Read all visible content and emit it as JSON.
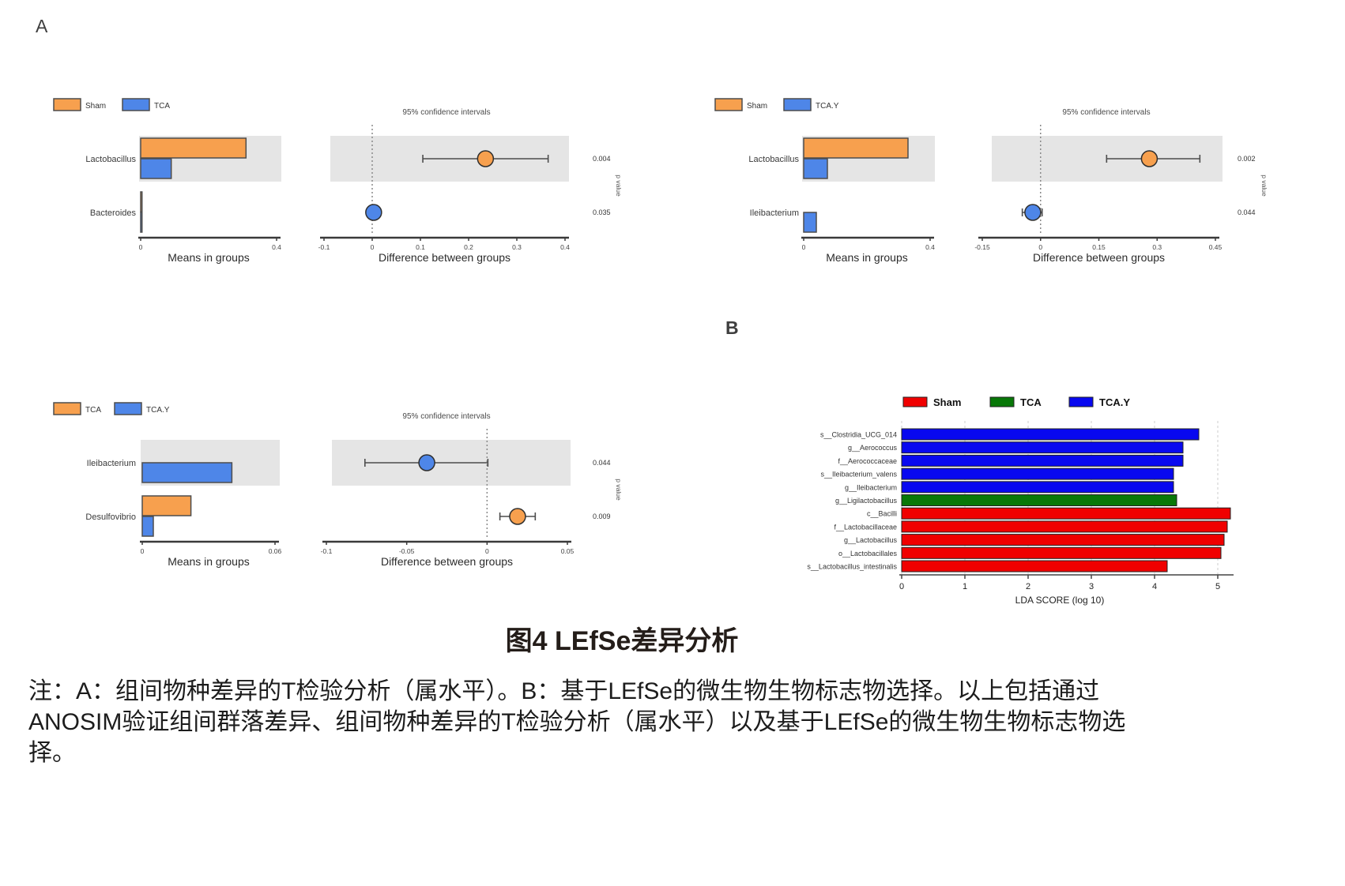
{
  "figure": {
    "panel_a_label": "A",
    "panel_b_label": "B",
    "caption": "图4 LEfSe差异分析",
    "note_lines": [
      "注：A：组间物种差异的T检验分析（属水平）。B：基于LEfSe的微生物生物标志物选择。以上包括通过",
      "ANOSIM验证组间群落差异、组间物种差异的T检验分析（属水平）以及基于LEfSe的微生物生物标志物选",
      "择。"
    ]
  },
  "colors": {
    "orange": "#F7A04E",
    "blue": "#4E86E8",
    "band": "#E5E5E5",
    "axis": "#3A3A3A",
    "grid": "#CCCCCC",
    "lefse_red": "#F00000",
    "lefse_green": "#087808",
    "lefse_blue": "#0808F0"
  },
  "chart_data": [
    {
      "id": "ttest-sham-vs-tca",
      "type": "bar",
      "title": "95% confidence intervals",
      "legend": [
        "Sham",
        "TCA"
      ],
      "legend_colors": [
        "orange",
        "blue"
      ],
      "categories": [
        "Lactobacillus",
        "Bacteroides"
      ],
      "series": [
        {
          "name": "Sham",
          "values": [
            0.31,
            0.004
          ]
        },
        {
          "name": "TCA",
          "values": [
            0.09,
            0.004
          ]
        }
      ],
      "means_xlabel": "Means in groups",
      "means_xlim": [
        0,
        0.4
      ],
      "means_ticks": [
        0,
        0.4
      ],
      "diff_xlabel": "Difference between groups",
      "diff_xlim": [
        -0.1,
        0.4
      ],
      "diff_ticks": [
        -0.1,
        0,
        0.1,
        0.2,
        0.3,
        0.4
      ],
      "p_axis_label": "p value",
      "difference_points": [
        {
          "category": "Lactobacillus",
          "mean": 0.235,
          "ci": [
            0.105,
            0.365
          ],
          "color": "orange",
          "p_value": "0.004",
          "shaded": true
        },
        {
          "category": "Bacteroides",
          "mean": 0.003,
          "ci": [
            -0.01,
            0.016
          ],
          "color": "blue",
          "p_value": "0.035",
          "shaded": false
        }
      ]
    },
    {
      "id": "ttest-sham-vs-tcay",
      "type": "bar",
      "title": "95% confidence intervals",
      "legend": [
        "Sham",
        "TCA.Y"
      ],
      "legend_colors": [
        "orange",
        "blue"
      ],
      "categories": [
        "Lactobacillus",
        "Ileibacterium"
      ],
      "series": [
        {
          "name": "Sham",
          "values": [
            0.33,
            0
          ]
        },
        {
          "name": "TCA.Y",
          "values": [
            0.075,
            0.04
          ]
        }
      ],
      "means_xlabel": "Means in groups",
      "means_xlim": [
        0,
        0.4
      ],
      "means_ticks": [
        0,
        0.4
      ],
      "diff_xlabel": "Difference between groups",
      "diff_xlim": [
        -0.15,
        0.45
      ],
      "diff_ticks": [
        -0.15,
        0,
        0.15,
        0.3,
        0.45
      ],
      "p_axis_label": "p value",
      "difference_points": [
        {
          "category": "Lactobacillus",
          "mean": 0.28,
          "ci": [
            0.17,
            0.41
          ],
          "color": "orange",
          "p_value": "0.002",
          "shaded": true
        },
        {
          "category": "Ileibacterium",
          "mean": -0.02,
          "ci": [
            -0.047,
            0.004
          ],
          "color": "blue",
          "p_value": "0.044",
          "shaded": false
        }
      ]
    },
    {
      "id": "ttest-tca-vs-tcay",
      "type": "bar",
      "title": "95% confidence intervals",
      "legend": [
        "TCA",
        "TCA.Y"
      ],
      "legend_colors": [
        "orange",
        "blue"
      ],
      "categories": [
        "Ileibacterium",
        "Desulfovibrio"
      ],
      "series": [
        {
          "name": "TCA",
          "values": [
            0,
            0.022
          ]
        },
        {
          "name": "TCA.Y",
          "values": [
            0.0405,
            0.005
          ]
        }
      ],
      "means_xlabel": "Means in groups",
      "means_xlim": [
        0,
        0.06
      ],
      "means_ticks": [
        0,
        0.06
      ],
      "diff_xlabel": "Difference between groups",
      "diff_xlim": [
        -0.1,
        0.05
      ],
      "diff_ticks": [
        -0.1,
        -0.05,
        0,
        0.05
      ],
      "p_axis_label": "p value",
      "difference_points": [
        {
          "category": "Ileibacterium",
          "mean": -0.0375,
          "ci": [
            -0.076,
            0.0005
          ],
          "color": "blue",
          "p_value": "0.044",
          "shaded": true
        },
        {
          "category": "Desulfovibrio",
          "mean": 0.019,
          "ci": [
            0.008,
            0.03
          ],
          "color": "orange",
          "p_value": "0.009",
          "shaded": false
        }
      ]
    },
    {
      "id": "lefse-lda",
      "type": "bar",
      "legend": [
        {
          "label": "Sham",
          "color": "lefse_red"
        },
        {
          "label": "TCA",
          "color": "lefse_green"
        },
        {
          "label": "TCA.Y",
          "color": "lefse_blue"
        }
      ],
      "categories": [
        "s__Clostridia_UCG_014",
        "g__Aerococcus",
        "f__Aerococcaceae",
        "s__Ileibacterium_valens",
        "g__Ileibacterium",
        "g__Ligilactobacillus",
        "c__Bacilli",
        "f__Lactobacillaceae",
        "g__Lactobacillus",
        "o__Lactobacillales",
        "s__Lactobacillus_intestinalis"
      ],
      "values": [
        4.7,
        4.45,
        4.45,
        4.3,
        4.3,
        4.35,
        5.2,
        5.15,
        5.1,
        5.05,
        4.2
      ],
      "bar_colors": [
        "lefse_blue",
        "lefse_blue",
        "lefse_blue",
        "lefse_blue",
        "lefse_blue",
        "lefse_green",
        "lefse_red",
        "lefse_red",
        "lefse_red",
        "lefse_red",
        "lefse_red"
      ],
      "xlabel": "LDA SCORE (log 10)",
      "xlim": [
        0,
        5
      ],
      "xticks": [
        0,
        1,
        2,
        3,
        4,
        5
      ]
    }
  ]
}
